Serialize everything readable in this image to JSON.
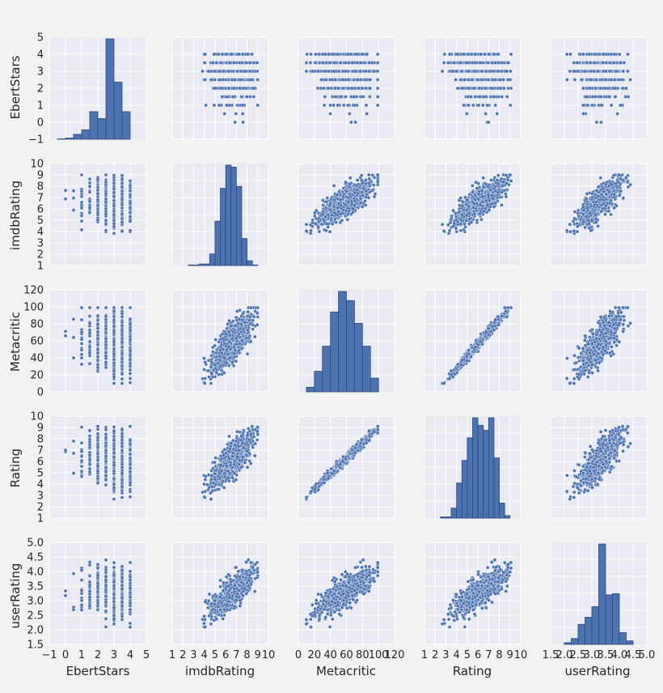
{
  "chart_data": {
    "type": "pairplot",
    "title": "",
    "variables": [
      "EbertStars",
      "imdbRating",
      "Metacritic",
      "Rating",
      "userRating"
    ],
    "point_color": "#4c72b0",
    "hist_color": "#4c72b0",
    "panel_background": "#eaeaf2",
    "grid_color": "#ffffff",
    "axes": {
      "EbertStars": {
        "range": [
          -1,
          5
        ],
        "ticks": [
          -1,
          0,
          1,
          2,
          3,
          4,
          5
        ],
        "tick_labels": [
          "−1",
          "0",
          "1",
          "2",
          "3",
          "4",
          "5"
        ]
      },
      "imdbRating": {
        "range": [
          1,
          10
        ],
        "ticks": [
          1,
          2,
          3,
          4,
          5,
          6,
          7,
          8,
          9,
          10
        ],
        "tick_labels": [
          "1",
          "2",
          "3",
          "4",
          "5",
          "6",
          "7",
          "8",
          "9",
          "10"
        ]
      },
      "Metacritic": {
        "range": [
          0,
          120
        ],
        "ticks": [
          0,
          20,
          40,
          60,
          80,
          100,
          120
        ],
        "tick_labels": [
          "0",
          "20",
          "40",
          "60",
          "80",
          "100",
          "120"
        ]
      },
      "Rating": {
        "range": [
          1,
          10
        ],
        "ticks": [
          1,
          2,
          3,
          4,
          5,
          6,
          7,
          8,
          9,
          10
        ],
        "tick_labels": [
          "1",
          "2",
          "3",
          "4",
          "5",
          "6",
          "7",
          "8",
          "9",
          "10"
        ]
      },
      "userRating": {
        "range": [
          1.5,
          5.0
        ],
        "ticks": [
          1.5,
          2.0,
          2.5,
          3.0,
          3.5,
          4.0,
          4.5,
          5.0
        ],
        "tick_labels": [
          "1.5",
          "2.0",
          "2.5",
          "3.0",
          "3.5",
          "4.0",
          "4.5",
          "5.0"
        ]
      }
    },
    "histograms": {
      "EbertStars": {
        "bin_edges": [
          -0.5,
          0,
          0.5,
          1,
          1.5,
          2,
          2.5,
          3,
          3.5,
          4
        ],
        "counts": [
          2,
          6,
          25,
          48,
          140,
          105,
          510,
          290,
          140
        ]
      },
      "imdbRating": {
        "bin_edges": [
          2.5,
          3.5,
          4.5,
          5.0,
          5.5,
          6.0,
          6.5,
          7.0,
          7.5,
          8.0,
          8.5,
          9.0
        ],
        "counts": [
          3,
          8,
          60,
          230,
          400,
          520,
          510,
          410,
          140,
          25,
          3
        ]
      },
      "Metacritic": {
        "bin_edges": [
          10,
          20,
          30,
          40,
          50,
          60,
          70,
          80,
          90,
          100
        ],
        "counts": [
          20,
          90,
          200,
          350,
          440,
          400,
          300,
          200,
          60
        ]
      },
      "Rating": {
        "bin_edges": [
          2.5,
          3.5,
          4.0,
          4.5,
          5.0,
          5.5,
          6.0,
          6.5,
          7.0,
          7.5,
          8.0,
          8.5,
          9.0
        ],
        "counts": [
          5,
          40,
          140,
          230,
          320,
          400,
          370,
          350,
          400,
          240,
          60,
          10
        ]
      },
      "userRating": {
        "bin_edges": [
          2.0,
          2.25,
          2.5,
          2.75,
          3.0,
          3.25,
          3.5,
          3.75,
          4.0,
          4.25,
          4.5
        ],
        "counts": [
          15,
          50,
          170,
          230,
          320,
          850,
          420,
          430,
          100,
          30
        ]
      }
    },
    "scatter_points": 800
  },
  "labels": {
    "row": [
      "EbertStars",
      "imdbRating",
      "Metacritic",
      "Rating",
      "userRating"
    ],
    "col": [
      "EbertStars",
      "imdbRating",
      "Metacritic",
      "Rating",
      "userRating"
    ]
  }
}
